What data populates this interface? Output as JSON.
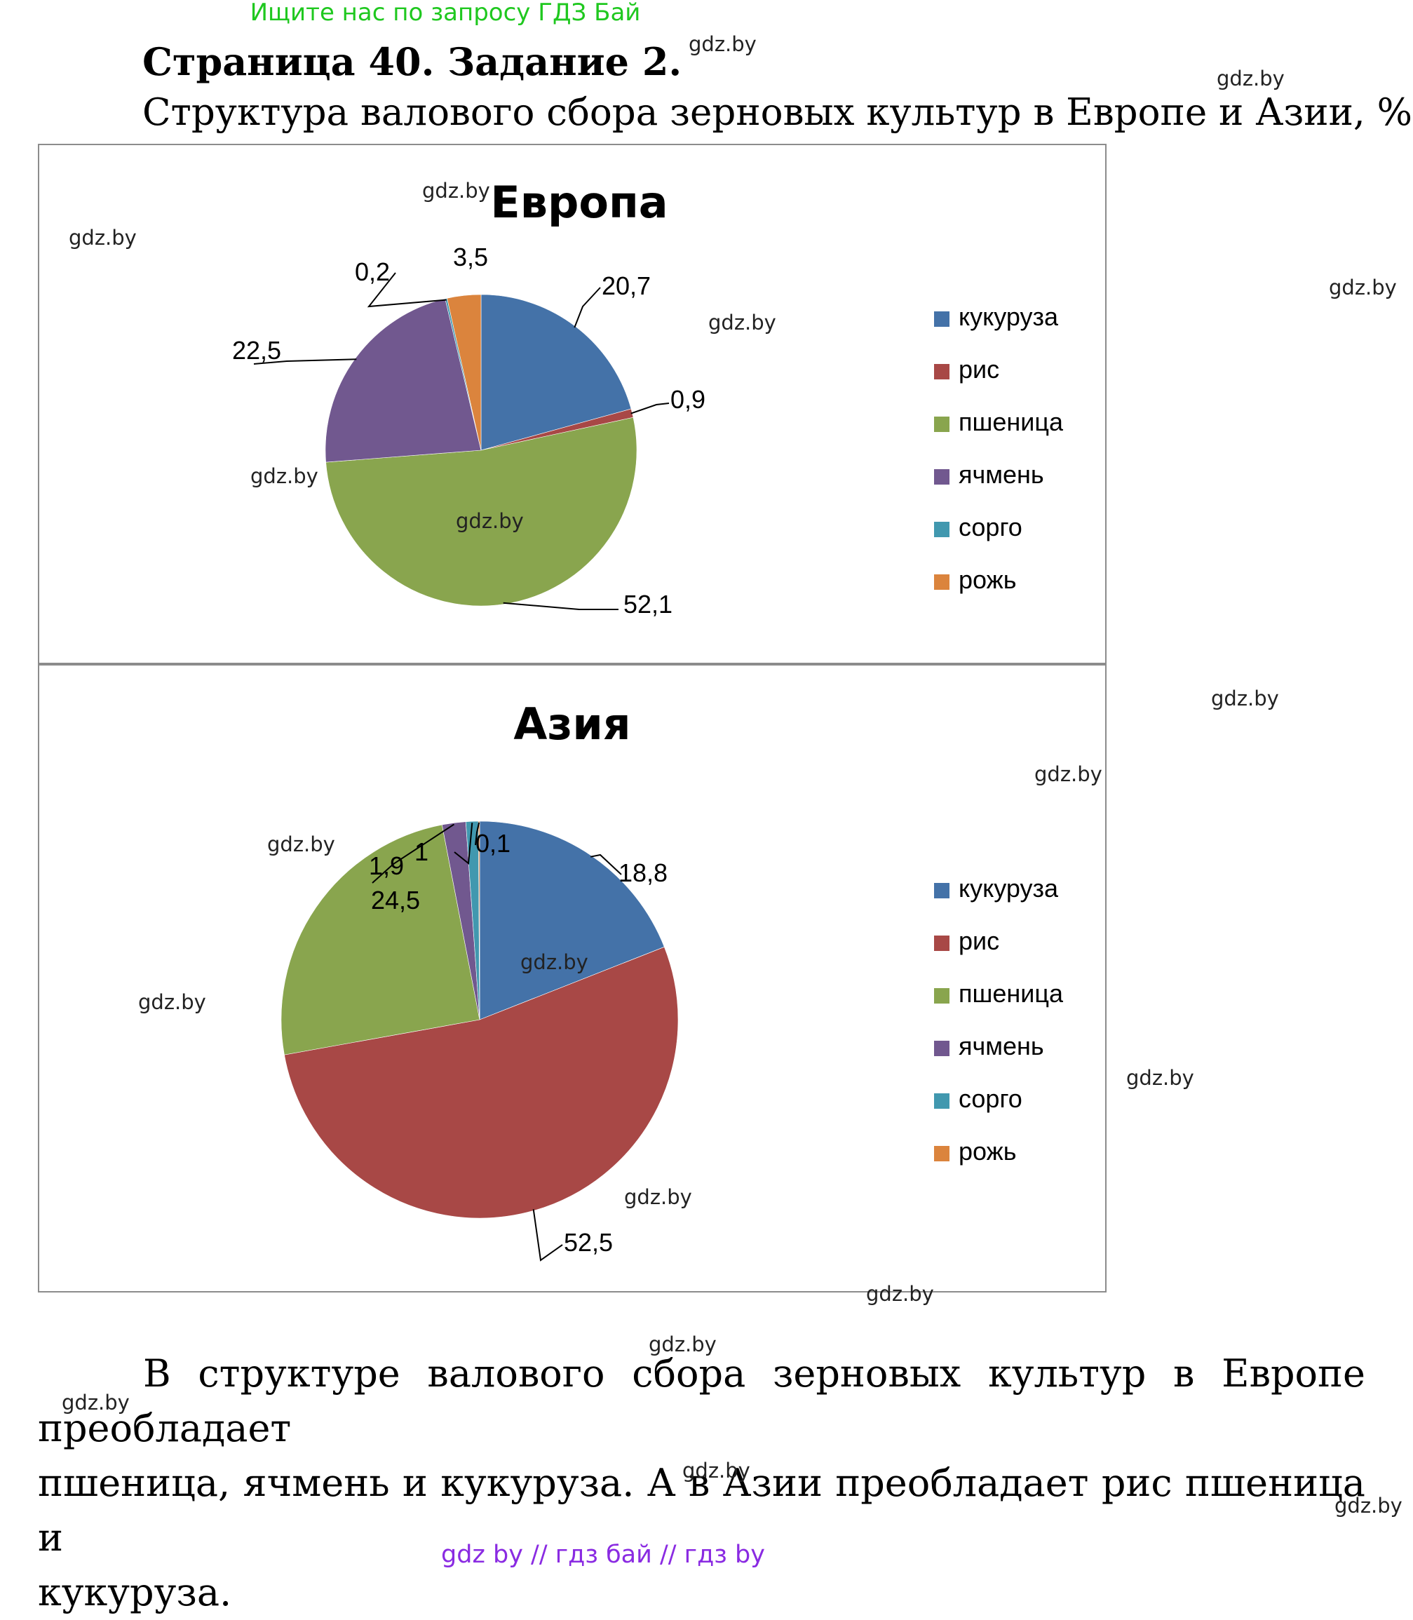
{
  "header": {
    "banner": "Ищите нас по запросу ГДЗ Бай",
    "title": "Страница 40. Задание 2.",
    "subtitle": "Структура валового сбора зерновых культур в Европе и Азии, %"
  },
  "colors": {
    "кукуруза": "#4472a8",
    "рис": "#a84846",
    "пшеница": "#89a54e",
    "ячмень": "#71588f",
    "сорго": "#4198af",
    "рожь": "#db843d"
  },
  "chart_data": [
    {
      "type": "pie",
      "title": "Европа",
      "categories": [
        "кукуруза",
        "рис",
        "пшеница",
        "ячмень",
        "сорго",
        "рожь"
      ],
      "values": [
        20.7,
        0.9,
        52.1,
        22.5,
        0.2,
        3.5
      ],
      "labels": [
        "20,7",
        "0,9",
        "52,1",
        "22,5",
        "0,2",
        "3,5"
      ],
      "legend": "right"
    },
    {
      "type": "pie",
      "title": "Азия",
      "categories": [
        "кукуруза",
        "рис",
        "пшеница",
        "ячмень",
        "сорго",
        "рожь"
      ],
      "values": [
        18.8,
        52.5,
        24.5,
        1.9,
        1,
        0.1
      ],
      "labels": [
        "18,8",
        "52,5",
        "24,5",
        "1,9",
        "1",
        "0,1"
      ],
      "legend": "right"
    }
  ],
  "conclusion": {
    "line1": "В структуре валового сбора зерновых культур в Европе преобладает",
    "line2": "пшеница, ячмень и кукуруза. А в Азии преобладает рис пшеница и",
    "line3": "кукуруза."
  },
  "watermark": "gdz.by",
  "footer": {
    "links": "gdz by // гдз бай // гдз by"
  }
}
